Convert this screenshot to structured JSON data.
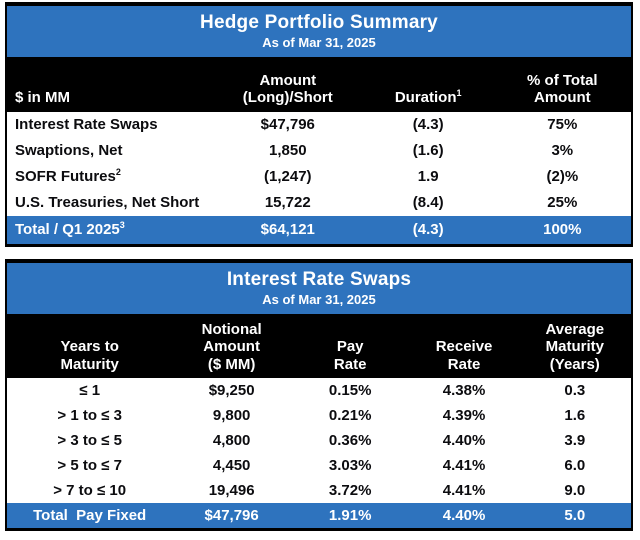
{
  "table1": {
    "title": "Hedge Portfolio Summary",
    "subtitle": "As of Mar 31, 2025",
    "columns": [
      {
        "label": "$ in MM"
      },
      {
        "label": "Amount\n(Long)/Short"
      },
      {
        "label": "Duration",
        "sup": "1"
      },
      {
        "label": "% of Total\nAmount"
      }
    ],
    "rows": [
      {
        "label": "Interest Rate Swaps",
        "sup": "",
        "amount": "$47,796",
        "duration": "(4.3)",
        "pct": "75%"
      },
      {
        "label": "Swaptions, Net",
        "sup": "",
        "amount": "1,850",
        "duration": "(1.6)",
        "pct": "3%"
      },
      {
        "label": "SOFR Futures",
        "sup": "2",
        "amount": "(1,247)",
        "duration": "1.9",
        "pct": "(2)%"
      },
      {
        "label": "U.S. Treasuries, Net Short",
        "sup": "",
        "amount": "15,722",
        "duration": "(8.4)",
        "pct": "25%"
      }
    ],
    "total": {
      "label": "Total / Q1 2025",
      "sup": "3",
      "amount": "$64,121",
      "duration": "(4.3)",
      "pct": "100%"
    }
  },
  "table2": {
    "title": "Interest Rate Swaps",
    "subtitle": "As of Mar 31, 2025",
    "columns": [
      {
        "label": "Years to\nMaturity"
      },
      {
        "label": "Notional\nAmount\n($ MM)"
      },
      {
        "label": "Pay\nRate"
      },
      {
        "label": "Receive\nRate"
      },
      {
        "label": "Average\nMaturity\n(Years)"
      }
    ],
    "rows": [
      {
        "bucket": "≤ 1",
        "notional": "$9,250",
        "pay": "0.15%",
        "receive": "4.38%",
        "avg": "0.3"
      },
      {
        "bucket": "> 1 to ≤ 3",
        "notional": "9,800",
        "pay": "0.21%",
        "receive": "4.39%",
        "avg": "1.6"
      },
      {
        "bucket": "> 3 to ≤ 5",
        "notional": "4,800",
        "pay": "0.36%",
        "receive": "4.40%",
        "avg": "3.9"
      },
      {
        "bucket": "> 5 to ≤ 7",
        "notional": "4,450",
        "pay": "3.03%",
        "receive": "4.41%",
        "avg": "6.0"
      },
      {
        "bucket": "> 7 to ≤ 10",
        "notional": "19,496",
        "pay": "3.72%",
        "receive": "4.41%",
        "avg": "9.0"
      }
    ],
    "total": {
      "label": "Total  Pay Fixed",
      "notional": "$47,796",
      "pay": "1.91%",
      "receive": "4.40%",
      "avg": "5.0"
    }
  },
  "colors": {
    "accent_blue": "#2E73BE",
    "band_black": "#000000",
    "text": "#0c0c0f"
  },
  "chart_data": [
    {
      "type": "table",
      "title": "Hedge Portfolio Summary",
      "subtitle": "As of Mar 31, 2025",
      "units": "$ in MM",
      "columns": [
        "$ in MM",
        "Amount (Long)/Short",
        "Duration",
        "% of Total Amount"
      ],
      "rows": [
        [
          "Interest Rate Swaps",
          47796,
          -4.3,
          75
        ],
        [
          "Swaptions, Net",
          1850,
          -1.6,
          3
        ],
        [
          "SOFR Futures",
          -1247,
          1.9,
          -2
        ],
        [
          "U.S. Treasuries, Net Short",
          15722,
          -8.4,
          25
        ]
      ],
      "total_row": [
        "Total / Q1 2025",
        64121,
        -4.3,
        100
      ],
      "notes": "Parentheses denote negative values; superscript footnotes 1, 2, 3 shown on Duration, SOFR Futures, Total / Q1 2025"
    },
    {
      "type": "table",
      "title": "Interest Rate Swaps",
      "subtitle": "As of Mar 31, 2025",
      "columns": [
        "Years to Maturity",
        "Notional Amount ($ MM)",
        "Pay Rate (%)",
        "Receive Rate (%)",
        "Average Maturity (Years)"
      ],
      "rows": [
        [
          "≤ 1",
          9250,
          0.15,
          4.38,
          0.3
        ],
        [
          "> 1 to ≤ 3",
          9800,
          0.21,
          4.39,
          1.6
        ],
        [
          "> 3 to ≤ 5",
          4800,
          0.36,
          4.4,
          3.9
        ],
        [
          "> 5 to ≤ 7",
          4450,
          3.03,
          4.41,
          6.0
        ],
        [
          "> 7 to ≤ 10",
          19496,
          3.72,
          4.41,
          9.0
        ]
      ],
      "total_row": [
        "Total Pay Fixed",
        47796,
        1.91,
        4.4,
        5.0
      ]
    }
  ]
}
